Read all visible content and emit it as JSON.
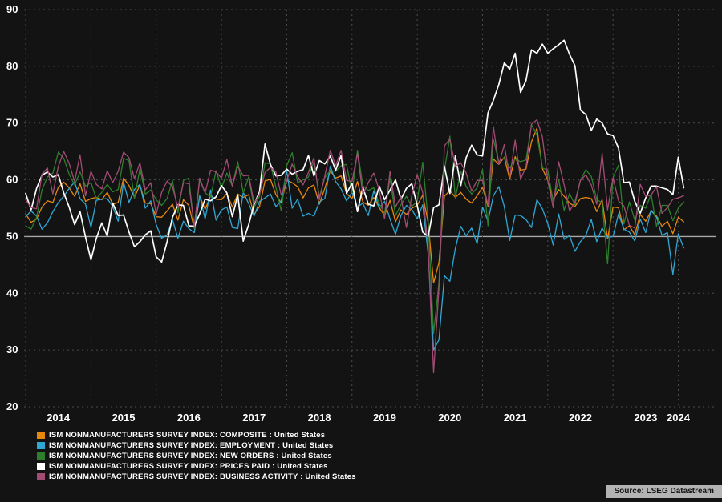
{
  "chart_data": {
    "type": "line",
    "frequency": "monthly",
    "x_start": "2014-01",
    "x_end": "2024-02",
    "x_tick_labels": [
      "2014",
      "2015",
      "2016",
      "2017",
      "2018",
      "2019",
      "2020",
      "2021",
      "2022",
      "2023",
      "2024"
    ],
    "ylim": [
      20,
      90
    ],
    "yticks": [
      20,
      30,
      40,
      50,
      60,
      70,
      80,
      90
    ],
    "reference_line": 50,
    "grid": true,
    "legend_position": "bottom-left",
    "background_color": "#131313",
    "gridline_color": "#4d4d4d",
    "reference_line_color": "#a8a8a8",
    "source": "Source: LSEG Datastream",
    "series": [
      {
        "name": "ISM NONMANUFACTURERS SURVEY INDEX: COMPOSITE : United States",
        "color": "#E8870E",
        "values": [
          54.0,
          52.5,
          53.1,
          55.2,
          56.3,
          56.0,
          58.7,
          59.6,
          58.6,
          57.1,
          59.3,
          56.2,
          56.7,
          56.9,
          56.5,
          57.8,
          55.7,
          56.0,
          60.3,
          59.0,
          56.9,
          59.1,
          55.9,
          55.8,
          53.5,
          53.4,
          54.5,
          55.7,
          52.9,
          56.5,
          55.5,
          51.4,
          57.1,
          54.8,
          57.2,
          56.6,
          56.5,
          57.6,
          55.2,
          57.5,
          56.9,
          57.4,
          53.9,
          55.3,
          59.8,
          60.1,
          57.4,
          55.9,
          59.9,
          59.5,
          58.8,
          56.8,
          58.6,
          59.1,
          55.7,
          58.5,
          61.6,
          60.3,
          60.7,
          57.6,
          56.7,
          59.7,
          56.1,
          55.5,
          56.9,
          55.1,
          53.7,
          56.4,
          52.6,
          54.7,
          53.9,
          55.0,
          55.5,
          57.3,
          52.5,
          41.8,
          45.4,
          57.1,
          58.1,
          56.9,
          57.8,
          56.6,
          55.9,
          57.2,
          58.7,
          55.3,
          63.7,
          62.7,
          64.0,
          60.1,
          64.1,
          61.7,
          61.9,
          66.7,
          69.1,
          62.0,
          59.9,
          56.5,
          58.3,
          57.1,
          55.9,
          55.3,
          56.7,
          56.9,
          56.7,
          54.4,
          56.5,
          49.6,
          55.2,
          55.1,
          51.2,
          51.9,
          50.3,
          53.9,
          52.7,
          54.5,
          53.6,
          51.8,
          52.7,
          50.5,
          53.4,
          52.6
        ]
      },
      {
        "name": "ISM NONMANUFACTURERS SURVEY INDEX: EMPLOYMENT : United States",
        "color": "#2FA8D5",
        "values": [
          53.5,
          54.5,
          53.6,
          51.3,
          52.4,
          54.4,
          56.0,
          57.1,
          58.5,
          59.6,
          56.7,
          55.7,
          51.6,
          56.4,
          56.6,
          56.7,
          55.3,
          52.7,
          59.6,
          56.0,
          58.3,
          59.2,
          55.0,
          56.3,
          52.1,
          49.7,
          50.3,
          53.0,
          49.7,
          52.7,
          51.4,
          50.7,
          57.2,
          53.1,
          58.2,
          52.9,
          54.7,
          55.2,
          51.6,
          51.4,
          57.8,
          55.8,
          53.6,
          56.2,
          56.8,
          57.5,
          55.3,
          56.3,
          61.6,
          55.0,
          56.6,
          53.6,
          54.1,
          53.6,
          56.1,
          56.7,
          62.4,
          59.7,
          58.4,
          56.3,
          57.8,
          55.2,
          55.9,
          53.7,
          58.1,
          55.0,
          56.2,
          53.1,
          50.4,
          53.7,
          55.5,
          54.8,
          53.1,
          55.6,
          47.0,
          30.0,
          31.8,
          43.1,
          42.1,
          47.9,
          51.8,
          50.1,
          51.5,
          48.7,
          55.2,
          52.7,
          57.2,
          58.8,
          55.3,
          49.3,
          53.8,
          53.7,
          53.0,
          51.6,
          56.5,
          54.9,
          52.3,
          48.5,
          54.0,
          49.5,
          50.2,
          47.4,
          49.1,
          50.2,
          53.0,
          49.1,
          51.5,
          49.8,
          50.0,
          54.0,
          51.3,
          50.8,
          49.2,
          53.1,
          50.7,
          54.7,
          53.4,
          50.2,
          50.7,
          43.3,
          50.5,
          48.0
        ]
      },
      {
        "name": "ISM NONMANUFACTURERS SURVEY INDEX: NEW ORDERS : United States",
        "color": "#2D7F2D",
        "values": [
          51.9,
          51.3,
          53.4,
          58.2,
          60.5,
          61.2,
          64.9,
          63.8,
          61.0,
          59.1,
          61.4,
          58.9,
          59.5,
          56.7,
          57.8,
          59.2,
          57.9,
          58.3,
          63.8,
          63.4,
          56.7,
          62.0,
          57.5,
          58.2,
          56.5,
          55.5,
          56.7,
          59.9,
          54.2,
          59.9,
          60.3,
          51.4,
          60.0,
          57.7,
          57.0,
          61.6,
          58.6,
          61.2,
          58.9,
          63.2,
          57.7,
          60.5,
          55.1,
          57.1,
          63.0,
          62.8,
          58.7,
          54.5,
          62.5,
          64.8,
          59.5,
          60.0,
          60.5,
          63.2,
          57.0,
          60.4,
          61.6,
          61.5,
          62.5,
          62.7,
          57.7,
          65.2,
          59.0,
          58.1,
          58.6,
          55.8,
          54.1,
          60.3,
          53.7,
          55.6,
          57.1,
          55.3,
          56.2,
          63.1,
          52.9,
          32.9,
          41.9,
          61.6,
          67.7,
          56.8,
          61.5,
          58.8,
          57.5,
          58.6,
          61.8,
          51.9,
          67.2,
          63.2,
          63.9,
          62.1,
          63.7,
          63.2,
          63.5,
          69.7,
          68.0,
          62.1,
          61.7,
          56.1,
          60.1,
          54.6,
          57.6,
          55.6,
          59.9,
          61.8,
          60.6,
          56.5,
          56.0,
          45.2,
          60.4,
          62.6,
          52.2,
          56.1,
          52.9,
          55.5,
          55.0,
          57.5,
          51.8,
          55.5,
          55.5,
          52.8,
          55.0,
          56.1
        ]
      },
      {
        "name": "ISM NONMANUFACTURERS SURVEY INDEX: PRICES PAID : United States",
        "color": "#FFFFFF",
        "values": [
          57.6,
          54.7,
          58.5,
          60.8,
          61.4,
          60.5,
          60.9,
          57.7,
          55.2,
          52.1,
          54.4,
          49.9,
          45.9,
          49.7,
          52.4,
          50.1,
          55.9,
          53.7,
          53.8,
          50.8,
          48.2,
          49.1,
          50.3,
          51.0,
          46.4,
          45.5,
          49.1,
          53.4,
          55.6,
          55.5,
          51.9,
          51.8,
          54.0,
          56.6,
          56.3,
          57.0,
          59.0,
          57.7,
          53.5,
          57.3,
          49.2,
          52.1,
          55.7,
          57.9,
          66.3,
          62.7,
          60.7,
          60.8,
          61.9,
          61.0,
          61.5,
          61.8,
          64.3,
          60.7,
          63.4,
          62.8,
          64.2,
          61.7,
          64.3,
          57.6,
          59.4,
          54.4,
          58.7,
          55.7,
          55.4,
          58.9,
          56.5,
          58.2,
          60.0,
          56.6,
          58.5,
          59.3,
          55.5,
          50.8,
          50.0,
          55.1,
          55.6,
          62.4,
          57.6,
          64.2,
          59.0,
          63.9,
          66.1,
          64.4,
          64.2,
          71.8,
          74.0,
          76.8,
          80.6,
          79.5,
          82.3,
          75.4,
          77.5,
          82.9,
          82.3,
          83.9,
          82.3,
          83.1,
          83.8,
          84.6,
          82.1,
          80.1,
          72.3,
          71.5,
          68.7,
          70.7,
          70.0,
          68.1,
          67.8,
          65.6,
          59.5,
          59.6,
          56.2,
          54.1,
          56.8,
          58.9,
          58.9,
          58.6,
          58.3,
          57.4,
          64.0,
          58.6
        ]
      },
      {
        "name": "ISM NONMANUFACTURERS SURVEY INDEX: BUSINESS ACTIVITY : United States",
        "color": "#A24C74",
        "values": [
          56.5,
          55.1,
          54.9,
          61.0,
          62.1,
          57.5,
          62.4,
          65.0,
          62.9,
          59.7,
          64.4,
          57.2,
          61.5,
          59.2,
          58.4,
          61.6,
          59.5,
          61.5,
          64.9,
          63.9,
          60.2,
          63.0,
          58.2,
          59.5,
          53.9,
          57.8,
          59.8,
          58.8,
          55.1,
          59.5,
          59.3,
          51.8,
          60.3,
          57.7,
          61.7,
          61.4,
          60.3,
          63.6,
          58.9,
          62.4,
          60.7,
          60.8,
          55.9,
          57.5,
          61.3,
          62.2,
          61.4,
          57.3,
          59.8,
          62.8,
          60.6,
          59.1,
          61.3,
          63.9,
          56.5,
          60.7,
          65.2,
          62.5,
          65.2,
          59.9,
          59.7,
          64.7,
          57.4,
          59.5,
          61.2,
          58.2,
          53.1,
          61.5,
          55.2,
          57.0,
          51.6,
          57.2,
          60.9,
          57.8,
          48.0,
          26.0,
          41.0,
          66.0,
          67.2,
          62.4,
          63.0,
          61.2,
          58.0,
          59.9,
          59.9,
          55.5,
          69.4,
          62.7,
          66.2,
          60.4,
          67.0,
          60.1,
          62.3,
          69.8,
          70.6,
          67.6,
          59.9,
          55.1,
          63.2,
          59.1,
          54.5,
          56.1,
          59.9,
          60.9,
          59.1,
          55.7,
          64.7,
          54.7,
          60.4,
          56.3,
          55.4,
          52.0,
          51.5,
          59.2,
          57.1,
          57.3,
          58.8,
          54.1,
          55.1,
          56.6,
          56.8,
          57.2
        ]
      }
    ]
  }
}
